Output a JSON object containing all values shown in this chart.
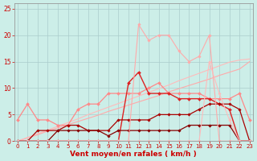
{
  "xlabel": "Vent moyen/en rafales ( km/h )",
  "bg_color": "#cceee8",
  "grid_color": "#aacccc",
  "x": [
    0,
    1,
    2,
    3,
    4,
    5,
    6,
    7,
    8,
    9,
    10,
    11,
    12,
    13,
    14,
    15,
    16,
    17,
    18,
    19,
    20,
    21,
    22,
    23
  ],
  "series": [
    {
      "y": [
        0.0,
        0.6,
        1.2,
        1.9,
        2.5,
        3.1,
        3.7,
        4.3,
        4.9,
        5.6,
        6.2,
        6.8,
        7.4,
        8.0,
        8.6,
        9.3,
        9.9,
        10.5,
        11.1,
        11.7,
        12.4,
        13.0,
        13.6,
        15.0
      ],
      "color": "#ffaaaa",
      "lw": 0.8,
      "marker": "None",
      "ms": 0
    },
    {
      "y": [
        0.0,
        0.7,
        1.4,
        2.1,
        2.8,
        3.5,
        4.2,
        5.0,
        5.7,
        6.4,
        7.1,
        7.8,
        8.5,
        9.2,
        9.9,
        10.6,
        11.4,
        12.1,
        12.8,
        13.5,
        14.2,
        14.9,
        15.3,
        15.5
      ],
      "color": "#ffbbbb",
      "lw": 0.8,
      "marker": "None",
      "ms": 0
    },
    {
      "y": [
        4,
        7,
        4,
        4,
        3,
        3,
        6,
        7,
        7,
        9,
        9,
        9,
        9,
        10,
        11,
        9,
        9,
        9,
        9,
        8,
        8,
        8,
        9,
        4
      ],
      "color": "#ff8888",
      "lw": 0.9,
      "marker": "D",
      "ms": 2.0
    },
    {
      "y": [
        0,
        0,
        0,
        0,
        0,
        0,
        0,
        0,
        0,
        0,
        0,
        11,
        13,
        9,
        9,
        9,
        8,
        8,
        8,
        8,
        7,
        6,
        0,
        0
      ],
      "color": "#dd2222",
      "lw": 1.0,
      "marker": "D",
      "ms": 2.0
    },
    {
      "y": [
        0,
        0,
        2,
        2,
        2,
        3,
        3,
        2,
        2,
        2,
        4,
        4,
        4,
        4,
        5,
        5,
        5,
        5,
        6,
        7,
        7,
        7,
        6,
        0
      ],
      "color": "#aa0000",
      "lw": 0.9,
      "marker": "D",
      "ms": 1.8
    },
    {
      "y": [
        0,
        0,
        0,
        0,
        2,
        2,
        2,
        2,
        2,
        1,
        2,
        2,
        2,
        2,
        2,
        2,
        2,
        3,
        3,
        3,
        3,
        3,
        0,
        0
      ],
      "color": "#880000",
      "lw": 0.9,
      "marker": "D",
      "ms": 1.8
    },
    {
      "y": [
        0,
        0,
        0,
        0,
        0,
        0,
        0,
        0,
        0,
        0,
        0,
        0,
        22,
        19,
        20,
        20,
        17,
        15,
        16,
        20,
        0,
        0,
        0,
        0
      ],
      "color": "#ffaaaa",
      "lw": 0.8,
      "marker": "D",
      "ms": 1.8
    },
    {
      "y": [
        0,
        0,
        0,
        0,
        0,
        0,
        0,
        0,
        0,
        0,
        0,
        0,
        0,
        0,
        0,
        0,
        0,
        0,
        0,
        15,
        9,
        4,
        0,
        0
      ],
      "color": "#ffbbbb",
      "lw": 0.8,
      "marker": "D",
      "ms": 1.8
    }
  ],
  "xlim": [
    -0.3,
    23.3
  ],
  "ylim": [
    0,
    26
  ],
  "yticks": [
    0,
    5,
    10,
    15,
    20,
    25
  ],
  "xticks": [
    0,
    1,
    2,
    3,
    4,
    5,
    6,
    7,
    8,
    9,
    10,
    11,
    12,
    13,
    14,
    15,
    16,
    17,
    18,
    19,
    20,
    21,
    22,
    23
  ],
  "tick_color": "#cc0000",
  "tick_fontsize": 5.0,
  "xlabel_fontsize": 6.5,
  "xlabel_color": "#cc0000",
  "ytick_fontsize": 5.5
}
